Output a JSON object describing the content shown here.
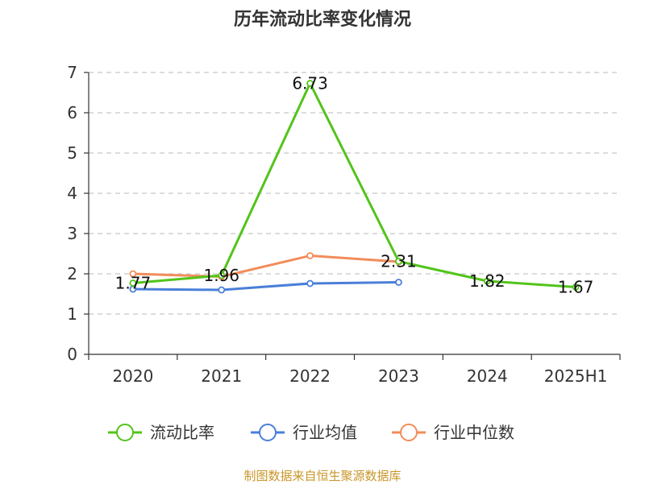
{
  "title": "历年流动比率变化情况",
  "source": "制图数据来自恒生聚源数据库",
  "chart_data": {
    "type": "line",
    "title": "历年流动比率变化情况",
    "categories": [
      "2020",
      "2021",
      "2022",
      "2023",
      "2024",
      "2025H1"
    ],
    "ylim": [
      0,
      7
    ],
    "yticks": [
      0,
      1,
      2,
      3,
      4,
      5,
      6,
      7
    ],
    "grid": true,
    "legend_position": "bottom",
    "series": [
      {
        "name": "流动比率",
        "color": "#52c41a",
        "values": [
          1.77,
          1.96,
          6.73,
          2.31,
          1.82,
          1.67
        ],
        "labels": [
          "1.77",
          "1.96",
          "6.73",
          "2.31",
          "1.82",
          "1.67"
        ]
      },
      {
        "name": "行业均值",
        "color": "#4a7fd9",
        "values": [
          1.62,
          1.6,
          1.76,
          1.79,
          null,
          null
        ]
      },
      {
        "name": "行业中位数",
        "color": "#f28c5a",
        "values": [
          2.0,
          1.93,
          2.45,
          2.3,
          null,
          null
        ]
      }
    ]
  }
}
